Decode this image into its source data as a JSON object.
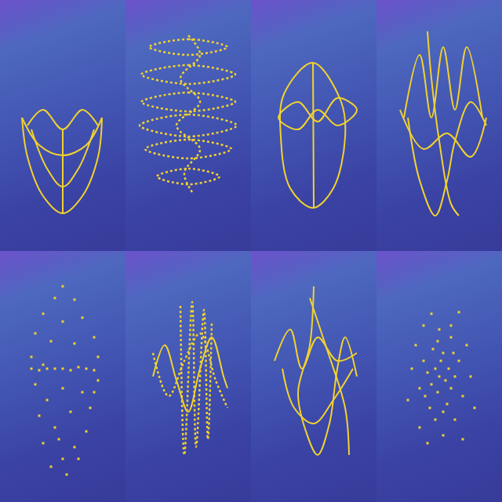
{
  "chart_data": [
    {
      "type": "line",
      "color": "#f2d22e",
      "xlim": [
        0,
        160
      ],
      "ylim": [
        320,
        0
      ],
      "tick_labels": false,
      "grid": false,
      "series": [
        {
          "line_style": "solid",
          "x": [
            28,
            35,
            55,
            80,
            105,
            125,
            130,
            null,
            28,
            50,
            80,
            110,
            130,
            null,
            35,
            55,
            80,
            105,
            125,
            null,
            40,
            60,
            80,
            100,
            120,
            null,
            80,
            80
          ],
          "y": [
            150,
            200,
            250,
            272,
            250,
            200,
            150,
            null,
            150,
            185,
            198,
            185,
            150,
            null,
            160,
            140,
            165,
            140,
            160,
            null,
            165,
            215,
            238,
            215,
            165,
            null,
            165,
            272
          ]
        }
      ]
    },
    {
      "type": "line",
      "color": "#f2d22e",
      "xlim": [
        0,
        160
      ],
      "ylim": [
        320,
        0
      ],
      "tick_labels": false,
      "grid": false,
      "series": [
        {
          "line_style": "dotted",
          "x": [
            30,
            80,
            130,
            80,
            30,
            null,
            20,
            80,
            140,
            80,
            20,
            null,
            20,
            80,
            140,
            80,
            20,
            null,
            18,
            80,
            142,
            80,
            18,
            null,
            25,
            80,
            135,
            80,
            25,
            null,
            40,
            80,
            120,
            80,
            40,
            null,
            80,
            95,
            70,
            95,
            65,
            95,
            75,
            85
          ],
          "y": [
            60,
            50,
            60,
            70,
            60,
            null,
            95,
            83,
            95,
            107,
            95,
            null,
            130,
            118,
            130,
            142,
            130,
            null,
            160,
            146,
            160,
            174,
            160,
            null,
            190,
            178,
            190,
            202,
            190,
            null,
            225,
            215,
            225,
            235,
            225,
            null,
            45,
            70,
            100,
            130,
            160,
            190,
            220,
            245
          ]
        }
      ]
    },
    {
      "type": "line",
      "color": "#f2d22e",
      "xlim": [
        0,
        160
      ],
      "ylim": [
        320,
        0
      ],
      "tick_labels": false,
      "grid": false,
      "series": [
        {
          "line_style": "solid",
          "x": [
            79,
            115,
            120,
            105,
            79,
            50,
            38,
            42,
            79,
            null,
            35,
            60,
            85,
            110,
            135,
            110,
            85,
            60,
            35,
            null,
            79,
            80
          ],
          "y": [
            80,
            130,
            175,
            240,
            265,
            240,
            175,
            120,
            80,
            null,
            150,
            130,
            155,
            125,
            140,
            160,
            140,
            165,
            150,
            null,
            80,
            265
          ]
        }
      ]
    },
    {
      "type": "line",
      "color": "#f2d22e",
      "xlim": [
        0,
        160
      ],
      "ylim": [
        320,
        0
      ],
      "tick_labels": false,
      "grid": false,
      "series": [
        {
          "line_style": "solid",
          "x": [
            35,
            55,
            70,
            85,
            100,
            115,
            135,
            null,
            40,
            55,
            75,
            90,
            100,
            120,
            140,
            null,
            65,
            70,
            80,
            95,
            105,
            null,
            30,
            60,
            90,
            120,
            140
          ],
          "y": [
            150,
            70,
            150,
            60,
            140,
            60,
            150,
            null,
            150,
            230,
            275,
            230,
            180,
            130,
            160,
            null,
            40,
            100,
            180,
            260,
            275,
            null,
            140,
            190,
            170,
            200,
            150
          ]
        }
      ]
    },
    {
      "type": "scatter",
      "color": "#f2d22e",
      "marker": "square",
      "xlim": [
        0,
        160
      ],
      "ylim": [
        320,
        0
      ],
      "tick_labels": false,
      "grid": false,
      "series": [
        {
          "x": [
            80,
            70,
            95,
            55,
            105,
            80,
            45,
            120,
            65,
            95,
            40,
            125,
            55,
            80,
            100,
            40,
            50,
            60,
            70,
            90,
            110,
            120,
            125,
            45,
            80,
            105,
            60,
            115,
            50,
            90,
            70,
            110,
            55,
            95,
            80,
            65,
            85,
            100,
            75,
            120
          ],
          "y": [
            45,
            60,
            62,
            80,
            85,
            90,
            105,
            110,
            115,
            118,
            135,
            135,
            145,
            150,
            148,
            150,
            152,
            150,
            150,
            152,
            150,
            152,
            165,
            170,
            175,
            180,
            190,
            200,
            210,
            205,
            225,
            230,
            245,
            250,
            265,
            275,
            285,
            265,
            240,
            180
          ]
        }
      ]
    },
    {
      "type": "line",
      "color": "#f2d22e",
      "xlim": [
        0,
        160
      ],
      "ylim": [
        320,
        0
      ],
      "tick_labels": false,
      "grid": false,
      "series": [
        {
          "line_style": "solid",
          "x": [
            35,
            50,
            65,
            80,
            95,
            110,
            125,
            130
          ],
          "y": [
            160,
            120,
            165,
            205,
            150,
            110,
            160,
            175
          ]
        },
        {
          "line_style": "dotted",
          "x": [
            70,
            75,
            85,
            90,
            100,
            105,
            110,
            null,
            35,
            55,
            75,
            95,
            115,
            130
          ],
          "y": [
            70,
            260,
            65,
            250,
            75,
            240,
            90,
            null,
            130,
            185,
            140,
            105,
            165,
            200
          ]
        }
      ]
    },
    {
      "type": "line",
      "color": "#f2d22e",
      "xlim": [
        0,
        160
      ],
      "ylim": [
        320,
        0
      ],
      "tick_labels": false,
      "grid": false,
      "series": [
        {
          "line_style": "solid",
          "x": [
            80,
            75,
            60,
            70,
            85,
            100,
            110,
            120,
            135,
            null,
            30,
            50,
            65,
            85,
            110,
            135,
            null,
            40,
            55,
            80,
            105,
            130,
            null,
            75,
            95,
            120,
            125
          ],
          "y": [
            45,
            120,
            180,
            230,
            260,
            220,
            150,
            110,
            160,
            null,
            140,
            100,
            150,
            110,
            140,
            130,
            null,
            150,
            200,
            220,
            190,
            150,
            null,
            60,
            120,
            200,
            260
          ]
        }
      ]
    },
    {
      "type": "scatter",
      "color": "#f2d22e",
      "marker": "square",
      "xlim": [
        0,
        160
      ],
      "ylim": [
        320,
        0
      ],
      "tick_labels": false,
      "grid": false,
      "series": [
        {
          "x": [
            80,
            75,
            88,
            70,
            92,
            82,
            65,
            95,
            78,
            85,
            60,
            100,
            72,
            105,
            55,
            90,
            68,
            110,
            50,
            115,
            80,
            95,
            60,
            45,
            120,
            75,
            100,
            55,
            110,
            85,
            40,
            125,
            70,
            105,
            65,
            95,
            85,
            62,
            98,
            78
          ],
          "y": [
            160,
            150,
            165,
            170,
            150,
            140,
            155,
            175,
            180,
            130,
            140,
            160,
            125,
            140,
            175,
            195,
            200,
            185,
            120,
            120,
            100,
            95,
            95,
            150,
            160,
            215,
            215,
            225,
            240,
            235,
            190,
            200,
            80,
            78,
            245,
            110,
            205,
            185,
            130,
            115
          ]
        }
      ]
    }
  ]
}
